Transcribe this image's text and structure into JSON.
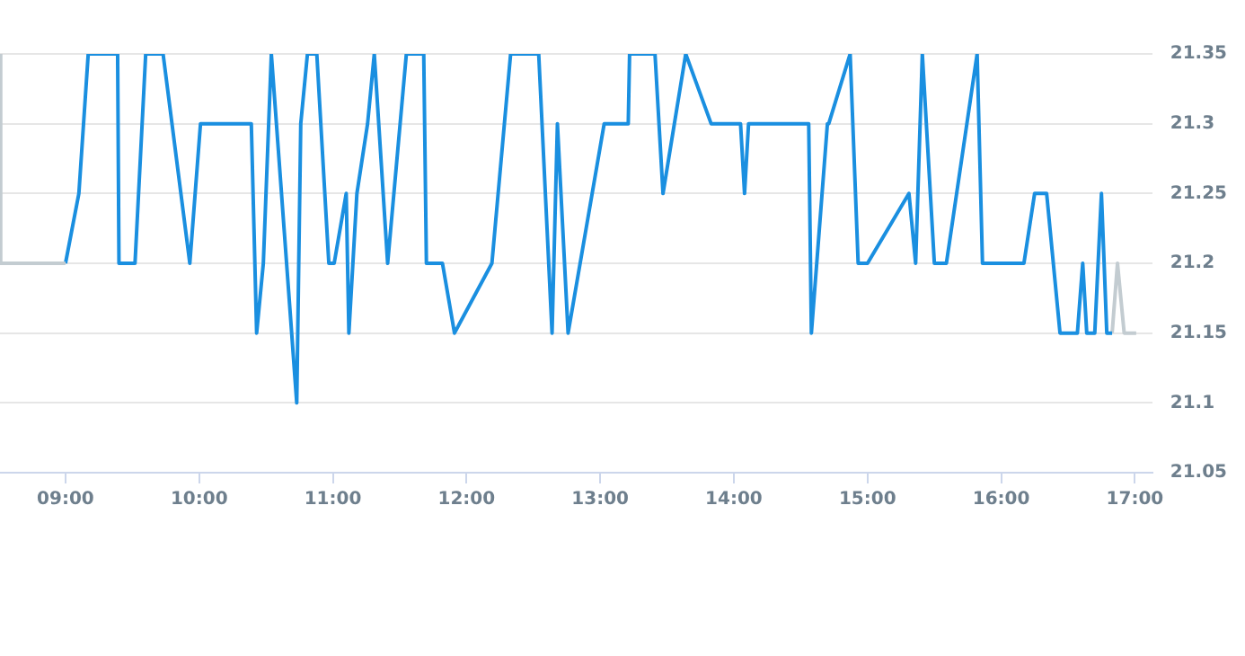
{
  "chart_data": {
    "type": "line",
    "xlim": [
      8.51,
      17.13
    ],
    "xticks": [
      {
        "value": 9,
        "label": "09:00"
      },
      {
        "value": 10,
        "label": "10:00"
      },
      {
        "value": 11,
        "label": "11:00"
      },
      {
        "value": 12,
        "label": "12:00"
      },
      {
        "value": 13,
        "label": "13:00"
      },
      {
        "value": 14,
        "label": "14:00"
      },
      {
        "value": 15,
        "label": "15:00"
      },
      {
        "value": 16,
        "label": "16:00"
      },
      {
        "value": 17,
        "label": "17:00"
      }
    ],
    "ylim": [
      21.05,
      21.35
    ],
    "yticks": [
      21.05,
      {
        "value": 21.1,
        "label": "21.1"
      },
      21.15,
      {
        "value": 21.2,
        "label": "21.2"
      },
      21.25,
      {
        "value": 21.3,
        "label": "21.3"
      },
      21.35
    ],
    "grid": "y",
    "legend": false,
    "marker": "none",
    "line_style": "solid",
    "series": [
      {
        "color": "#c3ccd1",
        "x": [
          8.51,
          8.515,
          9.0
        ],
        "values": [
          21.35,
          21.2,
          21.2
        ]
      },
      {
        "color": "#1a8fe0",
        "x": [
          9.0,
          9.1,
          9.17,
          9.39,
          9.4,
          9.52,
          9.6,
          9.73,
          9.93,
          10.01,
          10.39,
          10.43,
          10.48,
          10.54,
          10.73,
          10.76,
          10.81,
          10.88,
          10.97,
          11.01,
          11.1,
          11.12,
          11.18,
          11.26,
          11.31,
          11.41,
          11.55,
          11.68,
          11.7,
          11.82,
          11.91,
          12.19,
          12.33,
          12.54,
          12.64,
          12.68,
          12.76,
          13.03,
          13.21,
          13.22,
          13.41,
          13.47,
          13.64,
          13.83,
          14.05,
          14.08,
          14.11,
          14.56,
          14.57,
          14.58,
          14.7,
          14.71,
          14.87,
          14.93,
          15.0,
          15.31,
          15.36,
          15.41,
          15.5,
          15.59,
          15.82,
          15.86,
          16.17,
          16.25,
          16.34,
          16.44,
          16.57,
          16.61,
          16.64,
          16.7,
          16.75,
          16.79,
          16.83
        ],
        "values": [
          21.2,
          21.25,
          21.35,
          21.35,
          21.2,
          21.2,
          21.35,
          21.35,
          21.2,
          21.3,
          21.3,
          21.15,
          21.2,
          21.35,
          21.1,
          21.3,
          21.35,
          21.35,
          21.2,
          21.2,
          21.25,
          21.15,
          21.25,
          21.3,
          21.35,
          21.2,
          21.35,
          21.35,
          21.2,
          21.2,
          21.15,
          21.2,
          21.35,
          21.35,
          21.15,
          21.3,
          21.15,
          21.3,
          21.3,
          21.35,
          21.35,
          21.25,
          21.35,
          21.3,
          21.3,
          21.25,
          21.3,
          21.3,
          21.3,
          21.15,
          21.3,
          21.3,
          21.35,
          21.2,
          21.2,
          21.25,
          21.2,
          21.35,
          21.2,
          21.2,
          21.35,
          21.2,
          21.2,
          21.25,
          21.25,
          21.15,
          21.15,
          21.2,
          21.15,
          21.15,
          21.25,
          21.15,
          21.15
        ]
      },
      {
        "color": "#c3ccd1",
        "x": [
          16.83,
          16.87,
          16.92,
          17.01
        ],
        "values": [
          21.15,
          21.2,
          21.15,
          21.15
        ]
      }
    ]
  }
}
